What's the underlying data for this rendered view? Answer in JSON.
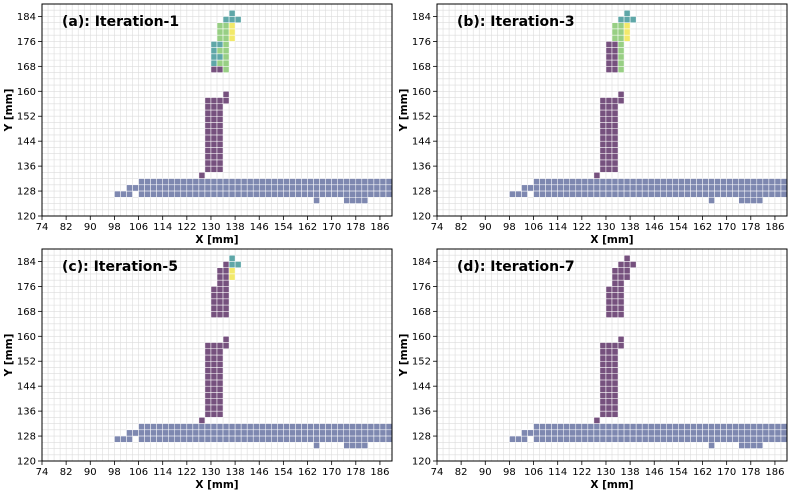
{
  "figure": {
    "xlabel": "X [mm]",
    "ylabel": "Y [mm]",
    "xticks": [
      74,
      82,
      90,
      98,
      106,
      114,
      122,
      130,
      138,
      146,
      154,
      162,
      170,
      178,
      186
    ],
    "yticks": [
      120,
      128,
      136,
      144,
      152,
      160,
      168,
      176,
      184
    ],
    "xlim": [
      74,
      190
    ],
    "ylim": [
      120,
      188
    ],
    "cell_size_mm": 2,
    "colors": {
      "base": "#7e88b0",
      "purple": "#76517e",
      "teal": "#5fa7a8",
      "green": "#98cf84",
      "yellow": "#f2e96a",
      "grid": "#dcdcdc"
    }
  },
  "chart_data": [
    {
      "type": "heatmap",
      "title": "(a): Iteration-1",
      "xlabel": "X [mm]",
      "ylabel": "Y [mm]",
      "xlim": [
        74,
        190
      ],
      "ylim": [
        120,
        188
      ],
      "cells": [
        {
          "x": 137,
          "y": 185,
          "c": "teal"
        },
        {
          "x": 135,
          "y": 183,
          "c": "teal"
        },
        {
          "x": 137,
          "y": 183,
          "c": "teal"
        },
        {
          "x": 139,
          "y": 183,
          "c": "teal"
        },
        {
          "x": 133,
          "y": 181,
          "c": "green"
        },
        {
          "x": 135,
          "y": 181,
          "c": "green"
        },
        {
          "x": 137,
          "y": 181,
          "c": "yellow"
        },
        {
          "x": 133,
          "y": 179,
          "c": "green"
        },
        {
          "x": 135,
          "y": 179,
          "c": "green"
        },
        {
          "x": 137,
          "y": 179,
          "c": "yellow"
        },
        {
          "x": 133,
          "y": 177,
          "c": "green"
        },
        {
          "x": 135,
          "y": 177,
          "c": "green"
        },
        {
          "x": 137,
          "y": 177,
          "c": "yellow"
        },
        {
          "x": 131,
          "y": 175,
          "c": "teal"
        },
        {
          "x": 133,
          "y": 175,
          "c": "teal"
        },
        {
          "x": 135,
          "y": 175,
          "c": "green"
        },
        {
          "x": 131,
          "y": 173,
          "c": "teal"
        },
        {
          "x": 133,
          "y": 173,
          "c": "green"
        },
        {
          "x": 135,
          "y": 173,
          "c": "green"
        },
        {
          "x": 131,
          "y": 171,
          "c": "teal"
        },
        {
          "x": 133,
          "y": 171,
          "c": "teal"
        },
        {
          "x": 135,
          "y": 171,
          "c": "green"
        },
        {
          "x": 131,
          "y": 169,
          "c": "teal"
        },
        {
          "x": 133,
          "y": 169,
          "c": "green"
        },
        {
          "x": 135,
          "y": 169,
          "c": "green"
        },
        {
          "x": 131,
          "y": 167,
          "c": "purple"
        },
        {
          "x": 133,
          "y": 167,
          "c": "purple"
        },
        {
          "x": 135,
          "y": 167,
          "c": "green"
        }
      ]
    },
    {
      "type": "heatmap",
      "title": "(b): Iteration-3",
      "xlabel": "X [mm]",
      "ylabel": "Y [mm]",
      "xlim": [
        74,
        190
      ],
      "ylim": [
        120,
        188
      ],
      "cells": [
        {
          "x": 137,
          "y": 185,
          "c": "teal"
        },
        {
          "x": 135,
          "y": 183,
          "c": "teal"
        },
        {
          "x": 137,
          "y": 183,
          "c": "teal"
        },
        {
          "x": 139,
          "y": 183,
          "c": "teal"
        },
        {
          "x": 133,
          "y": 181,
          "c": "green"
        },
        {
          "x": 135,
          "y": 181,
          "c": "green"
        },
        {
          "x": 137,
          "y": 181,
          "c": "yellow"
        },
        {
          "x": 133,
          "y": 179,
          "c": "green"
        },
        {
          "x": 135,
          "y": 179,
          "c": "green"
        },
        {
          "x": 137,
          "y": 179,
          "c": "yellow"
        },
        {
          "x": 133,
          "y": 177,
          "c": "green"
        },
        {
          "x": 135,
          "y": 177,
          "c": "green"
        },
        {
          "x": 137,
          "y": 177,
          "c": "yellow"
        },
        {
          "x": 131,
          "y": 175,
          "c": "purple"
        },
        {
          "x": 133,
          "y": 175,
          "c": "purple"
        },
        {
          "x": 135,
          "y": 175,
          "c": "green"
        },
        {
          "x": 131,
          "y": 173,
          "c": "purple"
        },
        {
          "x": 133,
          "y": 173,
          "c": "purple"
        },
        {
          "x": 135,
          "y": 173,
          "c": "green"
        },
        {
          "x": 131,
          "y": 171,
          "c": "purple"
        },
        {
          "x": 133,
          "y": 171,
          "c": "purple"
        },
        {
          "x": 135,
          "y": 171,
          "c": "green"
        },
        {
          "x": 131,
          "y": 169,
          "c": "purple"
        },
        {
          "x": 133,
          "y": 169,
          "c": "purple"
        },
        {
          "x": 135,
          "y": 169,
          "c": "green"
        },
        {
          "x": 131,
          "y": 167,
          "c": "purple"
        },
        {
          "x": 133,
          "y": 167,
          "c": "purple"
        },
        {
          "x": 135,
          "y": 167,
          "c": "green"
        }
      ]
    },
    {
      "type": "heatmap",
      "title": "(c): Iteration-5",
      "xlabel": "X [mm]",
      "ylabel": "Y [mm]",
      "xlim": [
        74,
        190
      ],
      "ylim": [
        120,
        188
      ],
      "cells": [
        {
          "x": 137,
          "y": 185,
          "c": "teal"
        },
        {
          "x": 135,
          "y": 183,
          "c": "purple"
        },
        {
          "x": 137,
          "y": 183,
          "c": "teal"
        },
        {
          "x": 139,
          "y": 183,
          "c": "teal"
        },
        {
          "x": 133,
          "y": 181,
          "c": "purple"
        },
        {
          "x": 135,
          "y": 181,
          "c": "purple"
        },
        {
          "x": 137,
          "y": 181,
          "c": "yellow"
        },
        {
          "x": 133,
          "y": 179,
          "c": "purple"
        },
        {
          "x": 135,
          "y": 179,
          "c": "purple"
        },
        {
          "x": 137,
          "y": 179,
          "c": "yellow"
        },
        {
          "x": 133,
          "y": 177,
          "c": "purple"
        },
        {
          "x": 135,
          "y": 177,
          "c": "purple"
        },
        {
          "x": 131,
          "y": 175,
          "c": "purple"
        },
        {
          "x": 133,
          "y": 175,
          "c": "purple"
        },
        {
          "x": 135,
          "y": 175,
          "c": "purple"
        },
        {
          "x": 131,
          "y": 173,
          "c": "purple"
        },
        {
          "x": 133,
          "y": 173,
          "c": "purple"
        },
        {
          "x": 135,
          "y": 173,
          "c": "purple"
        },
        {
          "x": 131,
          "y": 171,
          "c": "purple"
        },
        {
          "x": 133,
          "y": 171,
          "c": "purple"
        },
        {
          "x": 135,
          "y": 171,
          "c": "purple"
        },
        {
          "x": 131,
          "y": 169,
          "c": "purple"
        },
        {
          "x": 133,
          "y": 169,
          "c": "purple"
        },
        {
          "x": 135,
          "y": 169,
          "c": "purple"
        },
        {
          "x": 131,
          "y": 167,
          "c": "purple"
        },
        {
          "x": 133,
          "y": 167,
          "c": "purple"
        },
        {
          "x": 135,
          "y": 167,
          "c": "purple"
        }
      ]
    },
    {
      "type": "heatmap",
      "title": "(d): Iteration-7",
      "xlabel": "X [mm]",
      "ylabel": "Y [mm]",
      "xlim": [
        74,
        190
      ],
      "ylim": [
        120,
        188
      ],
      "cells": [
        {
          "x": 137,
          "y": 185,
          "c": "purple"
        },
        {
          "x": 135,
          "y": 183,
          "c": "purple"
        },
        {
          "x": 137,
          "y": 183,
          "c": "purple"
        },
        {
          "x": 139,
          "y": 183,
          "c": "purple"
        },
        {
          "x": 133,
          "y": 181,
          "c": "purple"
        },
        {
          "x": 135,
          "y": 181,
          "c": "purple"
        },
        {
          "x": 137,
          "y": 181,
          "c": "purple"
        },
        {
          "x": 133,
          "y": 179,
          "c": "purple"
        },
        {
          "x": 135,
          "y": 179,
          "c": "purple"
        },
        {
          "x": 137,
          "y": 179,
          "c": "purple"
        },
        {
          "x": 133,
          "y": 177,
          "c": "purple"
        },
        {
          "x": 135,
          "y": 177,
          "c": "purple"
        },
        {
          "x": 131,
          "y": 175,
          "c": "purple"
        },
        {
          "x": 133,
          "y": 175,
          "c": "purple"
        },
        {
          "x": 135,
          "y": 175,
          "c": "purple"
        },
        {
          "x": 131,
          "y": 173,
          "c": "purple"
        },
        {
          "x": 133,
          "y": 173,
          "c": "purple"
        },
        {
          "x": 135,
          "y": 173,
          "c": "purple"
        },
        {
          "x": 131,
          "y": 171,
          "c": "purple"
        },
        {
          "x": 133,
          "y": 171,
          "c": "purple"
        },
        {
          "x": 135,
          "y": 171,
          "c": "purple"
        },
        {
          "x": 131,
          "y": 169,
          "c": "purple"
        },
        {
          "x": 133,
          "y": 169,
          "c": "purple"
        },
        {
          "x": 135,
          "y": 169,
          "c": "purple"
        },
        {
          "x": 131,
          "y": 167,
          "c": "purple"
        },
        {
          "x": 133,
          "y": 167,
          "c": "purple"
        },
        {
          "x": 135,
          "y": 167,
          "c": "purple"
        }
      ]
    }
  ],
  "common_cells": {
    "stem": {
      "x_centers": [
        129,
        131,
        133
      ],
      "y_from": 135,
      "y_to": 157,
      "color": "purple",
      "extra": [
        {
          "x": 135,
          "y": 159,
          "c": "purple"
        },
        {
          "x": 135,
          "y": 157,
          "c": "purple"
        },
        {
          "x": 127,
          "y": 133,
          "c": "purple"
        }
      ]
    },
    "base_rows": [
      {
        "y": 131,
        "x_from": 107,
        "x_to": 189
      },
      {
        "y": 129,
        "x_from": 105,
        "x_to": 189
      },
      {
        "y": 127,
        "x_from": 109,
        "x_to": 189
      }
    ],
    "base_extra": [
      {
        "x": 99,
        "y": 127
      },
      {
        "x": 101,
        "y": 127
      },
      {
        "x": 103,
        "y": 127
      },
      {
        "x": 103,
        "y": 129
      },
      {
        "x": 165,
        "y": 125
      },
      {
        "x": 175,
        "y": 125
      },
      {
        "x": 177,
        "y": 125
      },
      {
        "x": 179,
        "y": 125
      },
      {
        "x": 181,
        "y": 125
      },
      {
        "x": 107,
        "y": 127
      }
    ]
  }
}
